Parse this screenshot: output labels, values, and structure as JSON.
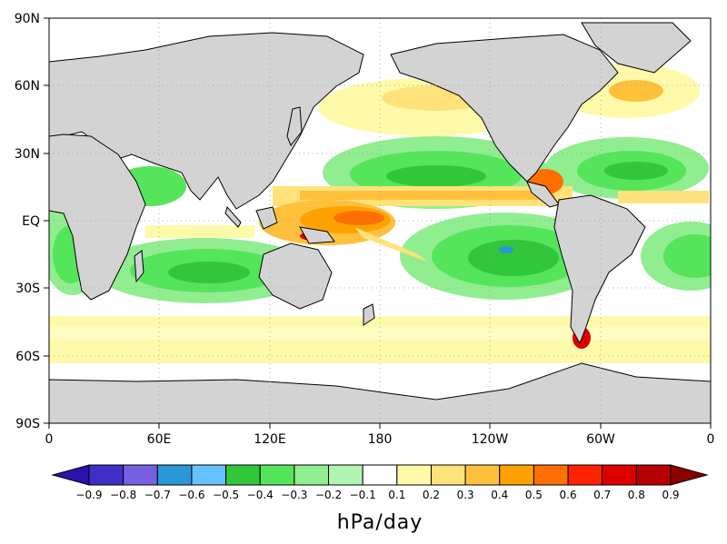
{
  "map": {
    "projection": "equirectangular",
    "x_ticks": [
      "0",
      "60E",
      "120E",
      "180",
      "120W",
      "60W",
      "0"
    ],
    "y_ticks": [
      "90N",
      "60N",
      "30N",
      "EQ",
      "30S",
      "60S",
      "90S"
    ],
    "gridlines": "dotted",
    "land_color": "#d3d3d3",
    "coastline_color": "#000000"
  },
  "colorbar": {
    "units": "hPa/day",
    "levels": [
      "-0.9",
      "-0.8",
      "-0.7",
      "-0.6",
      "-0.5",
      "-0.4",
      "-0.3",
      "-0.2",
      "-0.1",
      "0.1",
      "0.2",
      "0.3",
      "0.4",
      "0.5",
      "0.6",
      "0.7",
      "0.8",
      "0.9"
    ],
    "colors": [
      "#2a12b0",
      "#3e30c6",
      "#7760e0",
      "#2a97d6",
      "#66c2ff",
      "#32c73a",
      "#55e55a",
      "#90ee90",
      "#b2f5b2",
      "#ffffff",
      "#fffaaa",
      "#ffe279",
      "#ffc13c",
      "#ffa200",
      "#ff6f00",
      "#ff2400",
      "#dc0000",
      "#b40000",
      "#8a0000"
    ]
  }
}
